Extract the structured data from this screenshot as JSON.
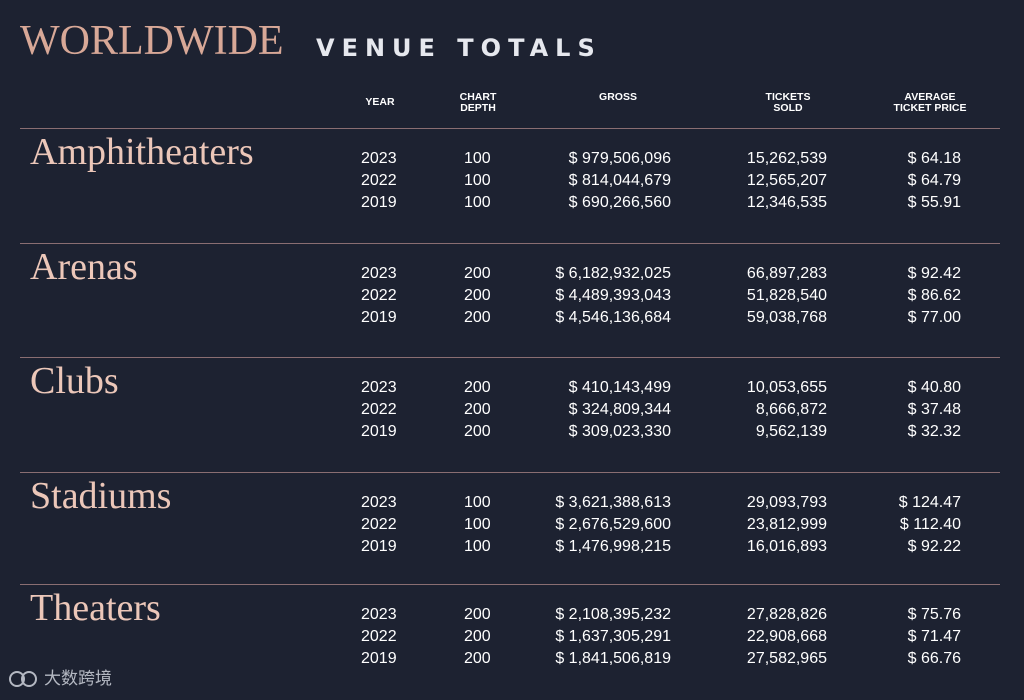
{
  "title": {
    "main": "WORLDWIDE",
    "sub": "VENUE TOTALS"
  },
  "headers": {
    "year": "YEAR",
    "chart_depth": "CHART\nDEPTH",
    "gross": "GROSS",
    "tickets_sold": "TICKETS\nSOLD",
    "avg_price": "AVERAGE\nTICKET PRICE"
  },
  "watermark": "大数跨境",
  "colors": {
    "background": "#1d2231",
    "title_accent": "#d8a897",
    "rule": "#8a6e72"
  },
  "chart_data": {
    "type": "table",
    "title": "WORLDWIDE VENUE TOTALS",
    "columns": [
      "YEAR",
      "CHART DEPTH",
      "GROSS",
      "TICKETS SOLD",
      "AVERAGE TICKET PRICE"
    ],
    "sections": [
      {
        "name": "Amphitheaters",
        "rows": [
          {
            "year": "2023",
            "depth": "100",
            "gross": "$ 979,506,096",
            "tickets": "15,262,539",
            "price": "$ 64.18"
          },
          {
            "year": "2022",
            "depth": "100",
            "gross": "$ 814,044,679",
            "tickets": "12,565,207",
            "price": "$ 64.79"
          },
          {
            "year": "2019",
            "depth": "100",
            "gross": "$ 690,266,560",
            "tickets": "12,346,535",
            "price": "$ 55.91"
          }
        ]
      },
      {
        "name": "Arenas",
        "rows": [
          {
            "year": "2023",
            "depth": "200",
            "gross": "$ 6,182,932,025",
            "tickets": "66,897,283",
            "price": "$ 92.42"
          },
          {
            "year": "2022",
            "depth": "200",
            "gross": "$ 4,489,393,043",
            "tickets": "51,828,540",
            "price": "$ 86.62"
          },
          {
            "year": "2019",
            "depth": "200",
            "gross": "$ 4,546,136,684",
            "tickets": "59,038,768",
            "price": "$ 77.00"
          }
        ]
      },
      {
        "name": "Clubs",
        "rows": [
          {
            "year": "2023",
            "depth": "200",
            "gross": "$ 410,143,499",
            "tickets": "10,053,655",
            "price": "$ 40.80"
          },
          {
            "year": "2022",
            "depth": "200",
            "gross": "$ 324,809,344",
            "tickets": "8,666,872",
            "price": "$ 37.48"
          },
          {
            "year": "2019",
            "depth": "200",
            "gross": "$ 309,023,330",
            "tickets": "9,562,139",
            "price": "$ 32.32"
          }
        ]
      },
      {
        "name": "Stadiums",
        "rows": [
          {
            "year": "2023",
            "depth": "100",
            "gross": "$ 3,621,388,613",
            "tickets": "29,093,793",
            "price": "$ 124.47"
          },
          {
            "year": "2022",
            "depth": "100",
            "gross": "$ 2,676,529,600",
            "tickets": "23,812,999",
            "price": "$ 112.40"
          },
          {
            "year": "2019",
            "depth": "100",
            "gross": "$ 1,476,998,215",
            "tickets": "16,016,893",
            "price": "$ 92.22"
          }
        ]
      },
      {
        "name": "Theaters",
        "rows": [
          {
            "year": "2023",
            "depth": "200",
            "gross": "$ 2,108,395,232",
            "tickets": "27,828,826",
            "price": "$ 75.76"
          },
          {
            "year": "2022",
            "depth": "200",
            "gross": "$ 1,637,305,291",
            "tickets": "22,908,668",
            "price": "$ 71.47"
          },
          {
            "year": "2019",
            "depth": "200",
            "gross": "$ 1,841,506,819",
            "tickets": "27,582,965",
            "price": "$ 66.76"
          }
        ]
      }
    ]
  }
}
